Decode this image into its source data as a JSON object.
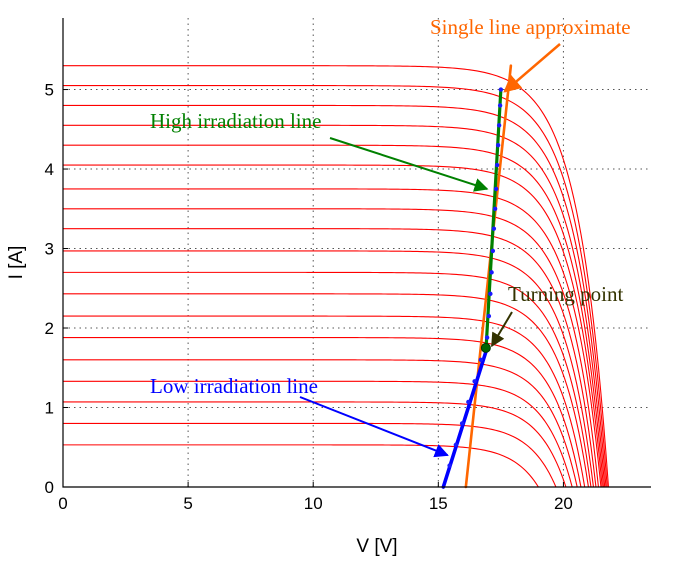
{
  "chart_data": {
    "type": "line",
    "title": "",
    "xlabel": "V [V]",
    "ylabel": "I [A]",
    "xlim": [
      0,
      23.5
    ],
    "ylim": [
      0,
      5.9
    ],
    "xticks": [
      0,
      5,
      10,
      15,
      20
    ],
    "yticks": [
      0,
      1,
      2,
      3,
      4,
      5
    ],
    "grid": true,
    "curve_color": "#ff0000",
    "iv_curves": [
      {
        "isc": 5.3,
        "voc": 21.8
      },
      {
        "isc": 5.05,
        "voc": 21.75
      },
      {
        "isc": 4.8,
        "voc": 21.7
      },
      {
        "isc": 4.55,
        "voc": 21.65
      },
      {
        "isc": 4.3,
        "voc": 21.6
      },
      {
        "isc": 4.05,
        "voc": 21.55
      },
      {
        "isc": 3.75,
        "voc": 21.5
      },
      {
        "isc": 3.5,
        "voc": 21.4
      },
      {
        "isc": 3.25,
        "voc": 21.3
      },
      {
        "isc": 2.97,
        "voc": 21.2
      },
      {
        "isc": 2.7,
        "voc": 21.1
      },
      {
        "isc": 2.43,
        "voc": 21.0
      },
      {
        "isc": 2.15,
        "voc": 20.85
      },
      {
        "isc": 1.88,
        "voc": 20.7
      },
      {
        "isc": 1.6,
        "voc": 20.55
      },
      {
        "isc": 1.33,
        "voc": 20.35
      },
      {
        "isc": 1.07,
        "voc": 20.1
      },
      {
        "isc": 0.8,
        "voc": 19.7
      },
      {
        "isc": 0.53,
        "voc": 19.0
      }
    ],
    "lines": [
      {
        "label": "Single line approximate",
        "color": "#ff6600",
        "points": [
          [
            16.1,
            0
          ],
          [
            17.9,
            5.3
          ]
        ]
      },
      {
        "label": "High irradiation line",
        "color": "#008000",
        "points": [
          [
            16.9,
            1.7
          ],
          [
            17.5,
            5.0
          ]
        ]
      },
      {
        "label": "Low irradiation line",
        "color": "#0000ff",
        "points": [
          [
            15.2,
            0
          ],
          [
            16.9,
            1.7
          ]
        ]
      }
    ],
    "mpp_points": [
      [
        15.45,
        0.27
      ],
      [
        15.7,
        0.53
      ],
      [
        15.95,
        0.8
      ],
      [
        16.2,
        1.07
      ],
      [
        16.45,
        1.33
      ],
      [
        16.7,
        1.6
      ],
      [
        16.95,
        1.88
      ],
      [
        17.02,
        2.15
      ],
      [
        17.08,
        2.43
      ],
      [
        17.13,
        2.7
      ],
      [
        17.18,
        2.97
      ],
      [
        17.22,
        3.25
      ],
      [
        17.27,
        3.5
      ],
      [
        17.31,
        3.75
      ],
      [
        17.35,
        4.05
      ],
      [
        17.39,
        4.3
      ],
      [
        17.43,
        4.55
      ],
      [
        17.47,
        4.8
      ],
      [
        17.5,
        5.0
      ]
    ],
    "turning_point": [
      16.9,
      1.75
    ],
    "annotations": {
      "single_line": "Single line approximate",
      "high_line": "High irradiation line",
      "turning_point": "Turning point",
      "low_line": "Low irradiation line"
    }
  }
}
